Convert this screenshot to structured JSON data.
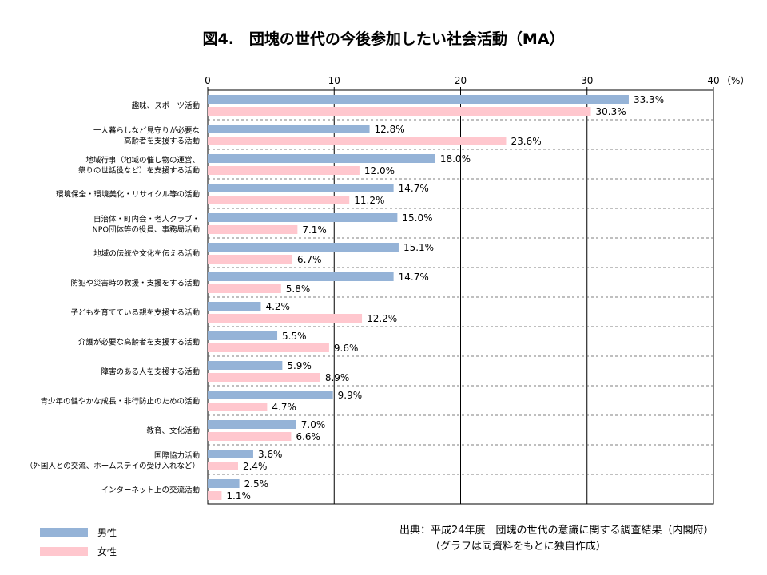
{
  "chart_data": {
    "type": "bar",
    "orientation": "horizontal",
    "title": "図4.　団塊の世代の今後参加したい社会活動（MA）",
    "unit_label": "（%）",
    "xlim": [
      0,
      40
    ],
    "xticks": [
      "0",
      "10",
      "20",
      "30",
      "40"
    ],
    "grid": true,
    "categories": [
      [
        "趣味、スポーツ活動"
      ],
      [
        "一人暮らしなど見守りが必要な",
        "高齢者を支援する活動"
      ],
      [
        "地域行事（地域の催し物の運営、",
        "祭りの世話役など）を支援する活動"
      ],
      [
        "環境保全・環境美化・リサイクル等の活動"
      ],
      [
        "自治体・町内会・老人クラブ・",
        "NPO団体等の役員、事務局活動"
      ],
      [
        "地域の伝統や文化を伝える活動"
      ],
      [
        "防犯や災害時の救援・支援をする活動"
      ],
      [
        "子どもを育てている親を支援する活動"
      ],
      [
        "介護が必要な高齢者を支援する活動"
      ],
      [
        "障害のある人を支援する活動"
      ],
      [
        "青少年の健やかな成長・非行防止のための活動"
      ],
      [
        "教育、文化活動"
      ],
      [
        "国際協力活動",
        "（外国人との交流、ホームステイの受け入れなど）"
      ],
      [
        "インターネット上の交流活動"
      ]
    ],
    "series": [
      {
        "name": "男性",
        "color": "#95B3D7",
        "values": [
          33.3,
          12.8,
          18.0,
          14.7,
          15.0,
          15.1,
          14.7,
          4.2,
          5.5,
          5.9,
          9.9,
          7.0,
          3.6,
          2.5
        ],
        "labels": [
          "33.3%",
          "12.8%",
          "18.0%",
          "14.7%",
          "15.0%",
          "15.1%",
          "14.7%",
          "4.2%",
          "5.5%",
          "5.9%",
          "9.9%",
          "7.0%",
          "3.6%",
          "2.5%"
        ]
      },
      {
        "name": "女性",
        "color": "#FFC7CE",
        "values": [
          30.3,
          23.6,
          12.0,
          11.2,
          7.1,
          6.7,
          5.8,
          12.2,
          9.6,
          8.9,
          4.7,
          6.6,
          2.4,
          1.1
        ],
        "labels": [
          "30.3%",
          "23.6%",
          "12.0%",
          "11.2%",
          "7.1%",
          "6.7%",
          "5.8%",
          "12.2%",
          "9.6%",
          "8.9%",
          "4.7%",
          "6.6%",
          "2.4%",
          "1.1%"
        ]
      }
    ],
    "legend": {
      "position": "bottom-left"
    }
  },
  "source": {
    "line1": "出典：平成24年度　団塊の世代の意識に関する調査結果（内閣府）",
    "line2": "（グラフは同資料をもとに独自作成）"
  }
}
